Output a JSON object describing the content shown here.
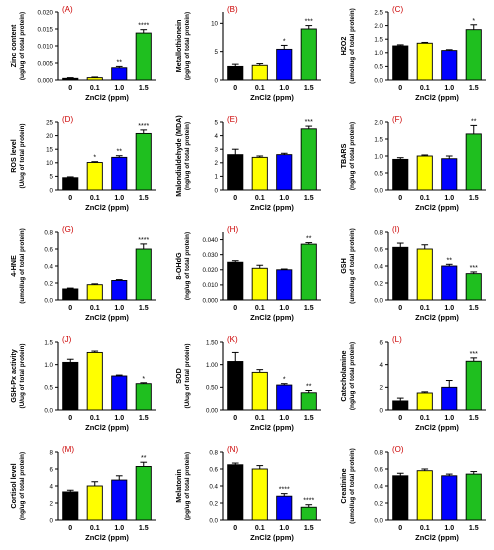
{
  "figure": {
    "colors": {
      "bars": [
        "#000000",
        "#ffff00",
        "#0000ff",
        "#1fbf1f"
      ],
      "panel_letter": "#cc0000",
      "axis": "#000000"
    },
    "categories": [
      "0",
      "0.1",
      "1.0",
      "1.5"
    ],
    "xlabel": "ZnCl2 (ppm)"
  },
  "chart_data": [
    {
      "type": "bar",
      "letter": "(A)",
      "ylabel": [
        "Zinc content",
        "(ug/ug of total protein)"
      ],
      "categories": [
        "0",
        "0.1",
        "1.0",
        "1.5"
      ],
      "values": [
        0.0005,
        0.0007,
        0.0036,
        0.0138
      ],
      "errors": [
        0.0002,
        0.0002,
        0.0004,
        0.001
      ],
      "sig": [
        "",
        "",
        "**",
        "****"
      ],
      "ylim": [
        0,
        0.02
      ],
      "ticks": [
        "0.000",
        "0.005",
        "0.010",
        "0.015",
        "0.020"
      ],
      "tickvals": [
        0,
        0.005,
        0.01,
        0.015,
        0.02
      ],
      "xlabel": "ZnCl2 (ppm)"
    },
    {
      "type": "bar",
      "letter": "(B)",
      "ylabel": [
        "Metallothionein",
        "(pg/ug of total protein)"
      ],
      "categories": [
        "0",
        "0.1",
        "1.0",
        "1.5"
      ],
      "values": [
        2.4,
        2.6,
        5.4,
        9.0
      ],
      "errors": [
        0.4,
        0.3,
        0.7,
        0.6
      ],
      "sig": [
        "",
        "",
        "*",
        "***"
      ],
      "ylim": [
        0,
        12
      ],
      "ticks": [
        "0",
        "5",
        "10"
      ],
      "tickvals": [
        0,
        5,
        10
      ],
      "xlabel": "ZnCl2 (ppm)"
    },
    {
      "type": "bar",
      "letter": "(C)",
      "ylabel": [
        "H2O2",
        "(umol/ug of total protein)"
      ],
      "categories": [
        "0",
        "0.1",
        "1.0",
        "1.5"
      ],
      "values": [
        1.25,
        1.35,
        1.08,
        1.85
      ],
      "errors": [
        0.04,
        0.03,
        0.03,
        0.18
      ],
      "sig": [
        "",
        "",
        "",
        "*"
      ],
      "ylim": [
        0,
        2.5
      ],
      "ticks": [
        "0.0",
        "0.5",
        "1.0",
        "1.5",
        "2.0",
        "2.5"
      ],
      "tickvals": [
        0,
        0.5,
        1,
        1.5,
        2,
        2.5
      ],
      "xlabel": "ZnCl2 (ppm)"
    },
    {
      "type": "bar",
      "letter": "(D)",
      "ylabel": [
        "ROS level",
        "(U/ug of total protein)"
      ],
      "categories": [
        "0",
        "0.1",
        "1.0",
        "1.5"
      ],
      "values": [
        4.5,
        10.1,
        12.0,
        20.8
      ],
      "errors": [
        0.3,
        0.3,
        0.6,
        1.3
      ],
      "sig": [
        "",
        "*",
        "**",
        "****"
      ],
      "ylim": [
        0,
        25
      ],
      "ticks": [
        "0",
        "5",
        "10",
        "15",
        "20",
        "25"
      ],
      "tickvals": [
        0,
        5,
        10,
        15,
        20,
        25
      ],
      "xlabel": "ZnCl2 (ppm)"
    },
    {
      "type": "bar",
      "letter": "(E)",
      "ylabel": [
        "Malondialdehyde (MDA)",
        "(ng/ug of total protein)"
      ],
      "categories": [
        "0",
        "0.1",
        "1.0",
        "1.5"
      ],
      "values": [
        2.6,
        2.4,
        2.6,
        4.5
      ],
      "errors": [
        0.4,
        0.1,
        0.1,
        0.2
      ],
      "sig": [
        "",
        "",
        "",
        "***"
      ],
      "ylim": [
        0,
        5
      ],
      "ticks": [
        "0",
        "1",
        "2",
        "3",
        "4",
        "5"
      ],
      "tickvals": [
        0,
        1,
        2,
        3,
        4,
        5
      ],
      "xlabel": "ZnCl2 (ppm)"
    },
    {
      "type": "bar",
      "letter": "(F)",
      "ylabel": [
        "TBARS",
        "(ng/ug of total protein)"
      ],
      "categories": [
        "0",
        "0.1",
        "1.0",
        "1.5"
      ],
      "values": [
        0.9,
        1.0,
        0.92,
        1.65
      ],
      "errors": [
        0.05,
        0.03,
        0.08,
        0.25
      ],
      "sig": [
        "",
        "",
        "",
        "**"
      ],
      "ylim": [
        0,
        2.0
      ],
      "ticks": [
        "0.0",
        "0.5",
        "1.0",
        "1.5",
        "2.0"
      ],
      "tickvals": [
        0,
        0.5,
        1,
        1.5,
        2
      ],
      "xlabel": "ZnCl2 (ppm)"
    },
    {
      "type": "bar",
      "letter": "(G)",
      "ylabel": [
        "4-HNE",
        "(umol/ug of total protein)"
      ],
      "categories": [
        "0",
        "0.1",
        "1.0",
        "1.5"
      ],
      "values": [
        0.13,
        0.18,
        0.23,
        0.6
      ],
      "errors": [
        0.01,
        0.01,
        0.01,
        0.06
      ],
      "sig": [
        "",
        "",
        "",
        "****"
      ],
      "ylim": [
        0,
        0.8
      ],
      "ticks": [
        "0.0",
        "0.2",
        "0.4",
        "0.6",
        "0.8"
      ],
      "tickvals": [
        0,
        0.2,
        0.4,
        0.6,
        0.8
      ],
      "xlabel": "ZnCl2 (ppm)"
    },
    {
      "type": "bar",
      "letter": "(H)",
      "ylabel": [
        "8-OHdG",
        "(ng/ug of total protein)"
      ],
      "categories": [
        "0",
        "0.1",
        "1.0",
        "1.5"
      ],
      "values": [
        0.025,
        0.021,
        0.02,
        0.037
      ],
      "errors": [
        0.001,
        0.002,
        0.0005,
        0.001
      ],
      "sig": [
        "",
        "",
        "",
        "**"
      ],
      "ylim": [
        0,
        0.045
      ],
      "ticks": [
        "0.000",
        "0.010",
        "0.020",
        "0.030",
        "0.040"
      ],
      "tickvals": [
        0,
        0.01,
        0.02,
        0.03,
        0.04
      ],
      "xlabel": "ZnCl2 (ppm)"
    },
    {
      "type": "bar",
      "letter": "(I)",
      "ylabel": [
        "GSH",
        "(umol/ug of total protein)"
      ],
      "categories": [
        "0",
        "0.1",
        "1.0",
        "1.5"
      ],
      "values": [
        0.62,
        0.6,
        0.4,
        0.31
      ],
      "errors": [
        0.05,
        0.05,
        0.02,
        0.02
      ],
      "sig": [
        "",
        "",
        "**",
        "***"
      ],
      "ylim": [
        0,
        0.8
      ],
      "ticks": [
        "0.0",
        "0.2",
        "0.4",
        "0.6",
        "0.8"
      ],
      "tickvals": [
        0,
        0.2,
        0.4,
        0.6,
        0.8
      ],
      "xlabel": "ZnCl2 (ppm)"
    },
    {
      "type": "bar",
      "letter": "(J)",
      "ylabel": [
        "GSH-Px activity",
        "(U/ug of total protein)"
      ],
      "categories": [
        "0",
        "0.1",
        "1.0",
        "1.5"
      ],
      "values": [
        1.05,
        1.27,
        0.75,
        0.58
      ],
      "errors": [
        0.07,
        0.03,
        0.02,
        0.02
      ],
      "sig": [
        "",
        "",
        "",
        "*"
      ],
      "ylim": [
        0,
        1.5
      ],
      "ticks": [
        "0.0",
        "0.5",
        "1.0",
        "1.5"
      ],
      "tickvals": [
        0,
        0.5,
        1,
        1.5
      ],
      "xlabel": "ZnCl2 (ppm)"
    },
    {
      "type": "bar",
      "letter": "(K)",
      "ylabel": [
        "SOD",
        "(U/ug of total protein)"
      ],
      "categories": [
        "0",
        "0.1",
        "1.0",
        "1.5"
      ],
      "values": [
        1.07,
        0.83,
        0.55,
        0.38
      ],
      "errors": [
        0.2,
        0.06,
        0.03,
        0.05
      ],
      "sig": [
        "",
        "",
        "*",
        "**"
      ],
      "ylim": [
        0,
        1.5
      ],
      "ticks": [
        "0.00",
        "0.50",
        "1.00",
        "1.50"
      ],
      "tickvals": [
        0,
        0.5,
        1,
        1.5
      ],
      "xlabel": "ZnCl2 (ppm)"
    },
    {
      "type": "bar",
      "letter": "(L)",
      "ylabel": [
        "Catecholamine",
        "(ng/ug of total protein)"
      ],
      "categories": [
        "0",
        "0.1",
        "1.0",
        "1.5"
      ],
      "values": [
        0.8,
        1.5,
        2.0,
        4.3
      ],
      "errors": [
        0.25,
        0.1,
        0.6,
        0.3
      ],
      "sig": [
        "",
        "",
        "",
        "***"
      ],
      "ylim": [
        0,
        6
      ],
      "ticks": [
        "0",
        "2",
        "4",
        "6"
      ],
      "tickvals": [
        0,
        2,
        4,
        6
      ],
      "xlabel": "ZnCl2 (ppm)"
    },
    {
      "type": "bar",
      "letter": "(M)",
      "ylabel": [
        "Cortisol level",
        "(ng/ug of total protein)"
      ],
      "categories": [
        "0",
        "0.1",
        "1.0",
        "1.5"
      ],
      "values": [
        3.3,
        4.0,
        4.7,
        6.3
      ],
      "errors": [
        0.2,
        0.5,
        0.5,
        0.5
      ],
      "sig": [
        "",
        "",
        "",
        "**"
      ],
      "ylim": [
        0,
        8
      ],
      "ticks": [
        "0",
        "2",
        "4",
        "6",
        "8"
      ],
      "tickvals": [
        0,
        2,
        4,
        6,
        8
      ],
      "xlabel": "ZnCl2 (ppm)"
    },
    {
      "type": "bar",
      "letter": "(N)",
      "ylabel": [
        "Melatonin",
        "(pg/ug of total protein)"
      ],
      "categories": [
        "0",
        "0.1",
        "1.0",
        "1.5"
      ],
      "values": [
        0.65,
        0.6,
        0.28,
        0.15
      ],
      "errors": [
        0.02,
        0.04,
        0.03,
        0.03
      ],
      "sig": [
        "",
        "",
        "****",
        "****"
      ],
      "ylim": [
        0,
        0.8
      ],
      "ticks": [
        "0.0",
        "0.2",
        "0.4",
        "0.6",
        "0.8"
      ],
      "tickvals": [
        0,
        0.2,
        0.4,
        0.6,
        0.8
      ],
      "xlabel": "ZnCl2 (ppm)"
    },
    {
      "type": "bar",
      "letter": "(O)",
      "ylabel": [
        "Creatinine",
        "(umol/ug of total protein)"
      ],
      "categories": [
        "0",
        "0.1",
        "1.0",
        "1.5"
      ],
      "values": [
        0.52,
        0.58,
        0.52,
        0.54
      ],
      "errors": [
        0.03,
        0.02,
        0.02,
        0.03
      ],
      "sig": [
        "",
        "",
        "",
        ""
      ],
      "ylim": [
        0,
        0.8
      ],
      "ticks": [
        "0.0",
        "0.2",
        "0.4",
        "0.6",
        "0.8"
      ],
      "tickvals": [
        0,
        0.2,
        0.4,
        0.6,
        0.8
      ],
      "xlabel": "ZnCl2 (ppm)"
    }
  ]
}
